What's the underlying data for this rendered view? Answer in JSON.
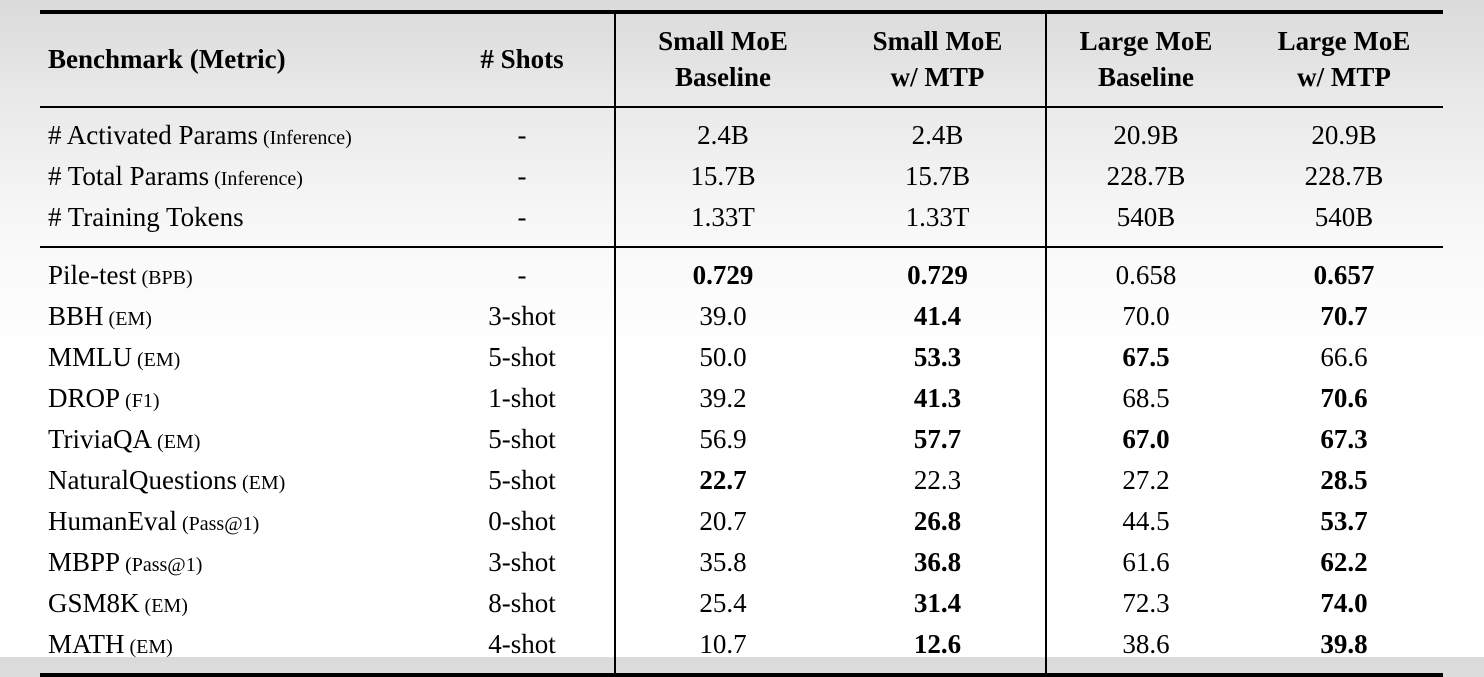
{
  "page": {
    "rule_color": "#000000",
    "background_top": "#dadada",
    "background_bottom": "#ffffff",
    "text_color": "#000000"
  },
  "table": {
    "header": {
      "col1": {
        "line1": "Benchmark (Metric)",
        "line2": ""
      },
      "col2": {
        "line1": "# Shots",
        "line2": ""
      },
      "col3": {
        "line1": "Small MoE",
        "line2": "Baseline"
      },
      "col4": {
        "line1": "Small MoE",
        "line2": "w/ MTP"
      },
      "col5": {
        "line1": "Large MoE",
        "line2": "Baseline"
      },
      "col6": {
        "line1": "Large MoE",
        "line2": "w/ MTP"
      }
    },
    "param_rows": [
      {
        "name": "# Activated Params",
        "metric": "(Inference)",
        "shots": "-",
        "values": [
          "2.4B",
          "2.4B",
          "20.9B",
          "20.9B"
        ],
        "bold": [
          false,
          false,
          false,
          false
        ]
      },
      {
        "name": "# Total Params",
        "metric": "(Inference)",
        "shots": "-",
        "values": [
          "15.7B",
          "15.7B",
          "228.7B",
          "228.7B"
        ],
        "bold": [
          false,
          false,
          false,
          false
        ]
      },
      {
        "name": "# Training Tokens",
        "metric": "",
        "shots": "-",
        "values": [
          "1.33T",
          "1.33T",
          "540B",
          "540B"
        ],
        "bold": [
          false,
          false,
          false,
          false
        ]
      }
    ],
    "benchmark_rows": [
      {
        "name": "Pile-test",
        "metric": "(BPB)",
        "shots": "-",
        "values": [
          "0.729",
          "0.729",
          "0.658",
          "0.657"
        ],
        "bold": [
          true,
          true,
          false,
          true
        ]
      },
      {
        "name": "BBH",
        "metric": "(EM)",
        "shots": "3-shot",
        "values": [
          "39.0",
          "41.4",
          "70.0",
          "70.7"
        ],
        "bold": [
          false,
          true,
          false,
          true
        ]
      },
      {
        "name": "MMLU",
        "metric": "(EM)",
        "shots": "5-shot",
        "values": [
          "50.0",
          "53.3",
          "67.5",
          "66.6"
        ],
        "bold": [
          false,
          true,
          true,
          false
        ]
      },
      {
        "name": "DROP",
        "metric": "(F1)",
        "shots": "1-shot",
        "values": [
          "39.2",
          "41.3",
          "68.5",
          "70.6"
        ],
        "bold": [
          false,
          true,
          false,
          true
        ]
      },
      {
        "name": "TriviaQA",
        "metric": "(EM)",
        "shots": "5-shot",
        "values": [
          "56.9",
          "57.7",
          "67.0",
          "67.3"
        ],
        "bold": [
          false,
          true,
          true,
          true
        ]
      },
      {
        "name": "NaturalQuestions",
        "metric": "(EM)",
        "shots": "5-shot",
        "values": [
          "22.7",
          "22.3",
          "27.2",
          "28.5"
        ],
        "bold": [
          true,
          false,
          false,
          true
        ]
      },
      {
        "name": "HumanEval",
        "metric": "(Pass@1)",
        "shots": "0-shot",
        "values": [
          "20.7",
          "26.8",
          "44.5",
          "53.7"
        ],
        "bold": [
          false,
          true,
          false,
          true
        ]
      },
      {
        "name": "MBPP",
        "metric": "(Pass@1)",
        "shots": "3-shot",
        "values": [
          "35.8",
          "36.8",
          "61.6",
          "62.2"
        ],
        "bold": [
          false,
          true,
          false,
          true
        ]
      },
      {
        "name": "GSM8K",
        "metric": "(EM)",
        "shots": "8-shot",
        "values": [
          "25.4",
          "31.4",
          "72.3",
          "74.0"
        ],
        "bold": [
          false,
          true,
          false,
          true
        ]
      },
      {
        "name": "MATH",
        "metric": "(EM)",
        "shots": "4-shot",
        "values": [
          "10.7",
          "12.6",
          "38.6",
          "39.8"
        ],
        "bold": [
          false,
          true,
          false,
          true
        ]
      }
    ]
  }
}
